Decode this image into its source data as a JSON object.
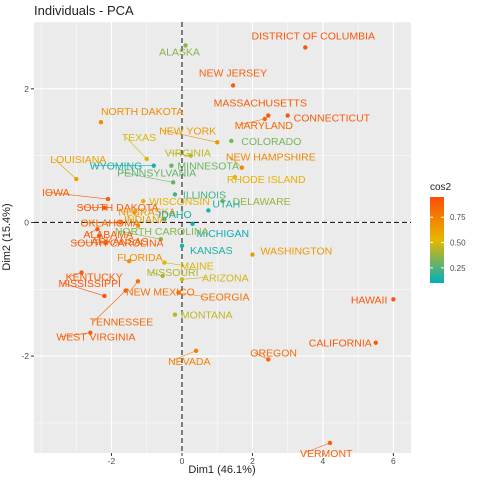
{
  "chart_data": {
    "type": "scatter",
    "title": "Individuals - PCA",
    "xlabel": "Dim1 (46.1%)",
    "ylabel": "Dim2 (15.4%)",
    "xlim": [
      -4.2,
      6.5
    ],
    "ylim": [
      -3.45,
      3.0
    ],
    "xticks": [
      -2,
      0,
      2,
      4,
      6
    ],
    "yticks": [
      -2,
      0,
      2
    ],
    "reference_lines": {
      "x": 0,
      "y": 0,
      "style": "dashed"
    },
    "grid": true,
    "legend": {
      "title": "cos2",
      "position": "right",
      "ticks": [
        0.25,
        0.5,
        0.75
      ],
      "range": [
        0.1,
        0.95
      ],
      "colors": [
        "#00AFBB",
        "#E7B800",
        "#FC4E07"
      ]
    },
    "points": [
      {
        "label": "DISTRICT OF COLUMBIA",
        "x": 3.5,
        "y": 2.62,
        "cos2": 0.92
      },
      {
        "label": "ALASKA",
        "x": 0.1,
        "y": 2.65,
        "cos2": 0.35
      },
      {
        "label": "NEW JERSEY",
        "x": 1.45,
        "y": 2.05,
        "cos2": 0.88
      },
      {
        "label": "MASSACHUSETTS",
        "x": 2.45,
        "y": 1.6,
        "cos2": 0.9
      },
      {
        "label": "CONNECTICUT",
        "x": 3.0,
        "y": 1.6,
        "cos2": 0.9
      },
      {
        "label": "MARYLAND",
        "x": 2.35,
        "y": 1.55,
        "cos2": 0.85
      },
      {
        "label": "NORTH DAKOTA",
        "x": -2.3,
        "y": 1.5,
        "cos2": 0.7
      },
      {
        "label": "NEW YORK",
        "x": 1.0,
        "y": 1.2,
        "cos2": 0.65
      },
      {
        "label": "COLORADO",
        "x": 1.4,
        "y": 1.22,
        "cos2": 0.32
      },
      {
        "label": "TEXAS",
        "x": -1.0,
        "y": 0.95,
        "cos2": 0.5
      },
      {
        "label": "VIRGINIA",
        "x": 0.25,
        "y": 1.0,
        "cos2": 0.45
      },
      {
        "label": "LOUISIANA",
        "x": -3.0,
        "y": 0.65,
        "cos2": 0.62
      },
      {
        "label": "NEW HAMPSHIRE",
        "x": 1.7,
        "y": 0.82,
        "cos2": 0.72
      },
      {
        "label": "WYOMING",
        "x": -0.8,
        "y": 0.85,
        "cos2": 0.15
      },
      {
        "label": "MINNESOTA",
        "x": -0.3,
        "y": 0.85,
        "cos2": 0.3
      },
      {
        "label": "PENNSYLVANIA",
        "x": -0.25,
        "y": 0.6,
        "cos2": 0.28
      },
      {
        "label": "RHODE ISLAND",
        "x": 1.5,
        "y": 0.68,
        "cos2": 0.55
      },
      {
        "label": "IOWA",
        "x": -2.1,
        "y": 0.35,
        "cos2": 0.88
      },
      {
        "label": "WISCONSIN",
        "x": -1.1,
        "y": 0.32,
        "cos2": 0.55
      },
      {
        "label": "ILLINOIS",
        "x": -0.2,
        "y": 0.42,
        "cos2": 0.22
      },
      {
        "label": "DELAWARE",
        "x": 1.15,
        "y": 0.32,
        "cos2": 0.38
      },
      {
        "label": "SOUTH DAKOTA",
        "x": -2.2,
        "y": 0.22,
        "cos2": 0.9
      },
      {
        "label": "NEBRASKA",
        "x": -1.35,
        "y": 0.15,
        "cos2": 0.65
      },
      {
        "label": "UTAH",
        "x": 0.75,
        "y": 0.18,
        "cos2": 0.15
      },
      {
        "label": "IDAHO",
        "x": -0.5,
        "y": 0.05,
        "cos2": 0.14
      },
      {
        "label": "OKLAHOMA",
        "x": -1.75,
        "y": 0.0,
        "cos2": 0.85
      },
      {
        "label": "INDIANA",
        "x": -1.25,
        "y": -0.05,
        "cos2": 0.62
      },
      {
        "label": "MICHIGAN",
        "x": 0.3,
        "y": -0.02,
        "cos2": 0.12
      },
      {
        "label": "ALABAMA",
        "x": -2.4,
        "y": -0.1,
        "cos2": 0.9
      },
      {
        "label": "ARKANSAS",
        "x": -2.35,
        "y": -0.2,
        "cos2": 0.88
      },
      {
        "label": "NORTH CAROLINA",
        "x": -0.6,
        "y": -0.25,
        "cos2": 0.35
      },
      {
        "label": "SOUTH CAROLINA",
        "x": -2.15,
        "y": -0.3,
        "cos2": 0.9
      },
      {
        "label": "KANSAS",
        "x": 0.0,
        "y": -0.35,
        "cos2": 0.15
      },
      {
        "label": "WASHINGTON",
        "x": 2.0,
        "y": -0.48,
        "cos2": 0.65
      },
      {
        "label": "MAINE",
        "x": -0.5,
        "y": -0.6,
        "cos2": 0.5
      },
      {
        "label": "FLORIDA",
        "x": -1.5,
        "y": -0.58,
        "cos2": 0.68
      },
      {
        "label": "KENTUCKY",
        "x": -2.85,
        "y": -0.75,
        "cos2": 0.9
      },
      {
        "label": "MISSOURI",
        "x": -0.55,
        "y": -0.8,
        "cos2": 0.42
      },
      {
        "label": "ARIZONA",
        "x": 0.0,
        "y": -0.85,
        "cos2": 0.48
      },
      {
        "label": "MISSISSIPPI",
        "x": -2.2,
        "y": -1.1,
        "cos2": 0.92
      },
      {
        "label": "GEORGIA",
        "x": -0.1,
        "y": -1.05,
        "cos2": 0.8
      },
      {
        "label": "NEW MEXICO",
        "x": -1.25,
        "y": -0.88,
        "cos2": 0.82
      },
      {
        "label": "HAWAII",
        "x": 6.0,
        "y": -1.15,
        "cos2": 0.92
      },
      {
        "label": "TENNESSEE",
        "x": -1.6,
        "y": -1.02,
        "cos2": 0.86
      },
      {
        "label": "MONTANA",
        "x": -0.2,
        "y": -1.38,
        "cos2": 0.45
      },
      {
        "label": "CALIFORNIA",
        "x": 5.5,
        "y": -1.8,
        "cos2": 0.9
      },
      {
        "label": "WEST VIRGINIA",
        "x": -2.6,
        "y": -1.65,
        "cos2": 0.88
      },
      {
        "label": "OREGON",
        "x": 2.45,
        "y": -2.05,
        "cos2": 0.85
      },
      {
        "label": "NEVADA",
        "x": 0.4,
        "y": -1.92,
        "cos2": 0.75
      },
      {
        "label": "VERMONT",
        "x": 4.2,
        "y": -3.3,
        "cos2": 0.88
      }
    ]
  }
}
